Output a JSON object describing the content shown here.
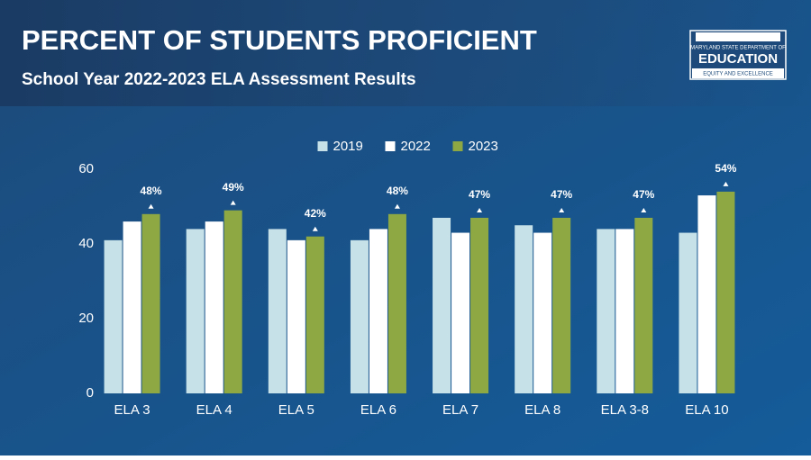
{
  "chart_data": {
    "type": "bar",
    "title": "PERCENT OF STUDENTS PROFICIENT",
    "subtitle": "School Year 2022-2023 ELA Assessment Results",
    "categories": [
      "ELA 3",
      "ELA 4",
      "ELA 5",
      "ELA 6",
      "ELA 7",
      "ELA 8",
      "ELA 3-8",
      "ELA 10"
    ],
    "series": [
      {
        "name": "2019",
        "color": "#c6e1e7",
        "values": [
          41,
          44,
          44,
          41,
          47,
          45,
          44,
          43
        ]
      },
      {
        "name": "2022",
        "color": "#ffffff",
        "values": [
          46,
          46,
          41,
          44,
          43,
          43,
          44,
          53
        ]
      },
      {
        "name": "2023",
        "color": "#8ea943",
        "values": [
          48,
          49,
          42,
          48,
          47,
          47,
          47,
          54
        ],
        "value_labels": [
          "48%",
          "49%",
          "42%",
          "48%",
          "47%",
          "47%",
          "47%",
          "54%"
        ]
      }
    ],
    "ylim": [
      0,
      60
    ],
    "yticks": [
      0,
      20,
      40,
      60
    ],
    "grid": false,
    "legend": "top"
  },
  "logo": {
    "line1": "MARYLAND STATE DEPARTMENT OF",
    "line2": "EDUCATION",
    "line3": "EQUITY AND EXCELLENCE"
  }
}
